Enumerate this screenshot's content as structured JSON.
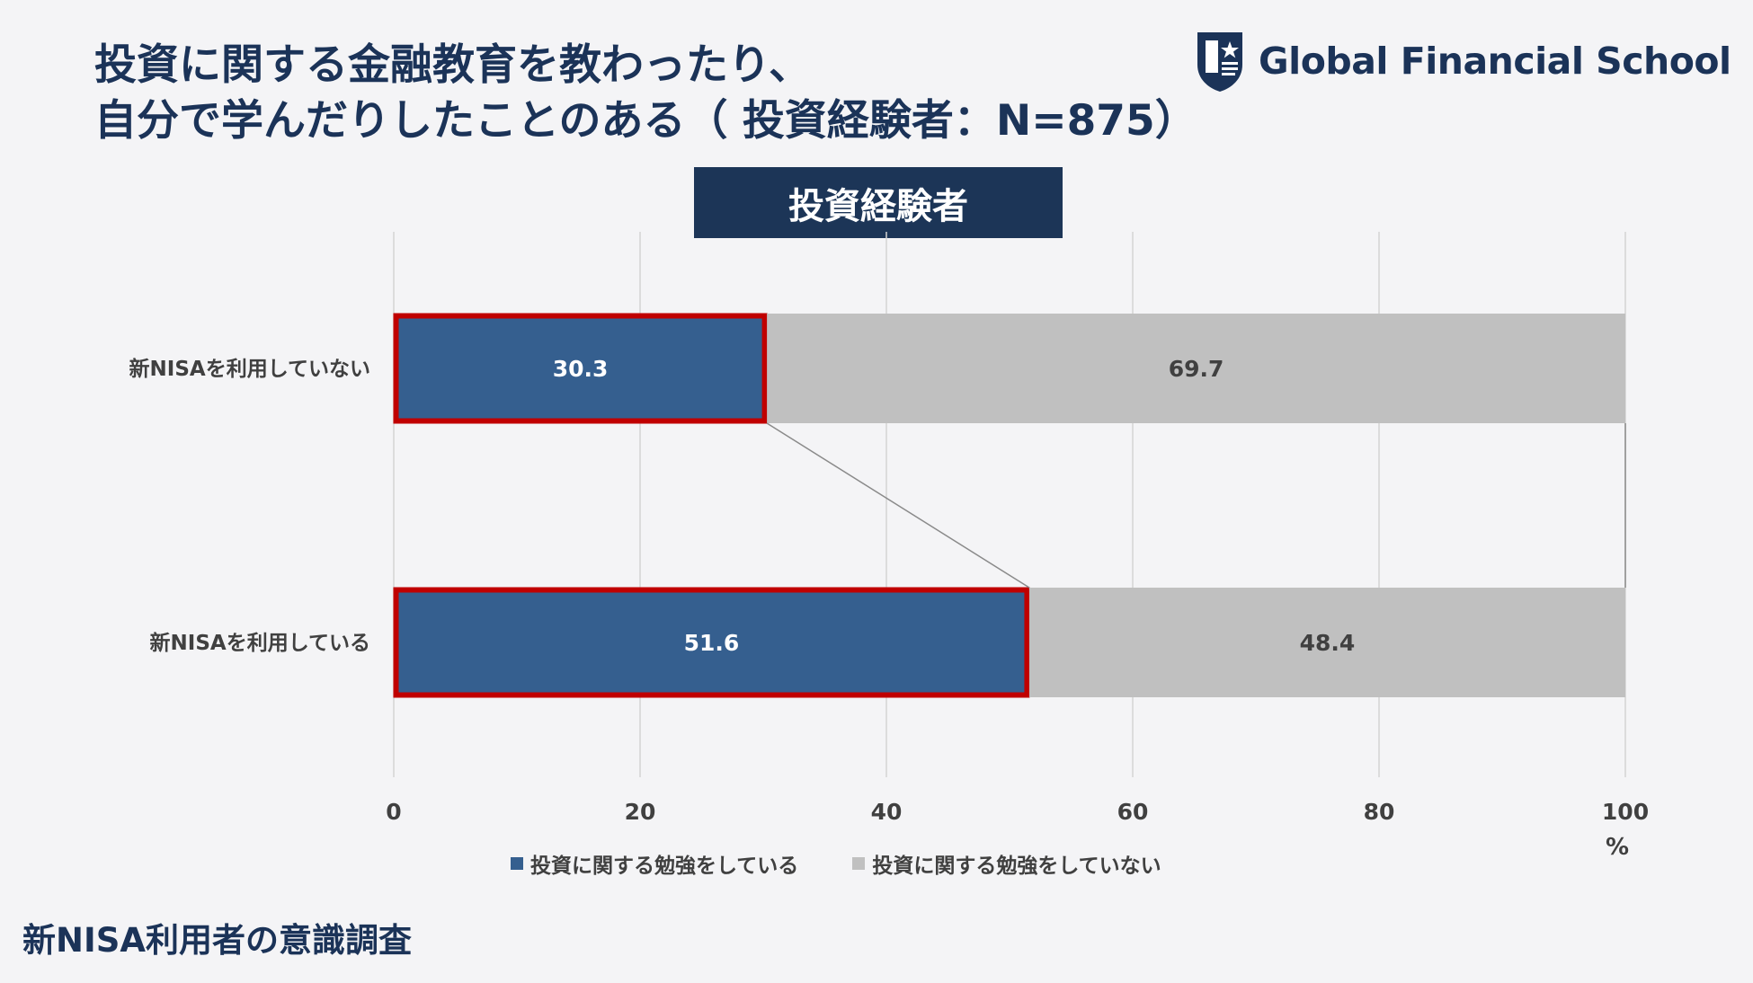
{
  "title": {
    "line1": "投資に関する金融教育を教わったり、",
    "line2": "自分で学んだりしたことのある（ 投資経験者：N=875）"
  },
  "logo": {
    "text": "Global Financial School",
    "icon": "shield-star-icon"
  },
  "group_label": "投資経験者",
  "chart_data": {
    "type": "bar",
    "orientation": "horizontal",
    "stacked": true,
    "categories": [
      "新NISAを利用していない",
      "新NISAを利用している"
    ],
    "series": [
      {
        "name": "投資に関する勉強をしている",
        "values": [
          30.3,
          51.6
        ],
        "color": "#355f8f"
      },
      {
        "name": "投資に関する勉強をしていない",
        "values": [
          69.7,
          48.4
        ],
        "color": "#c0c0c0"
      }
    ],
    "xlim": [
      0,
      100
    ],
    "xticks": [
      "0",
      "20",
      "40",
      "60",
      "80",
      "100"
    ],
    "unit": "%",
    "highlight_color": "#c00000",
    "grid": true,
    "legend_position": "bottom"
  },
  "footer": "新NISA利用者の意識調査"
}
